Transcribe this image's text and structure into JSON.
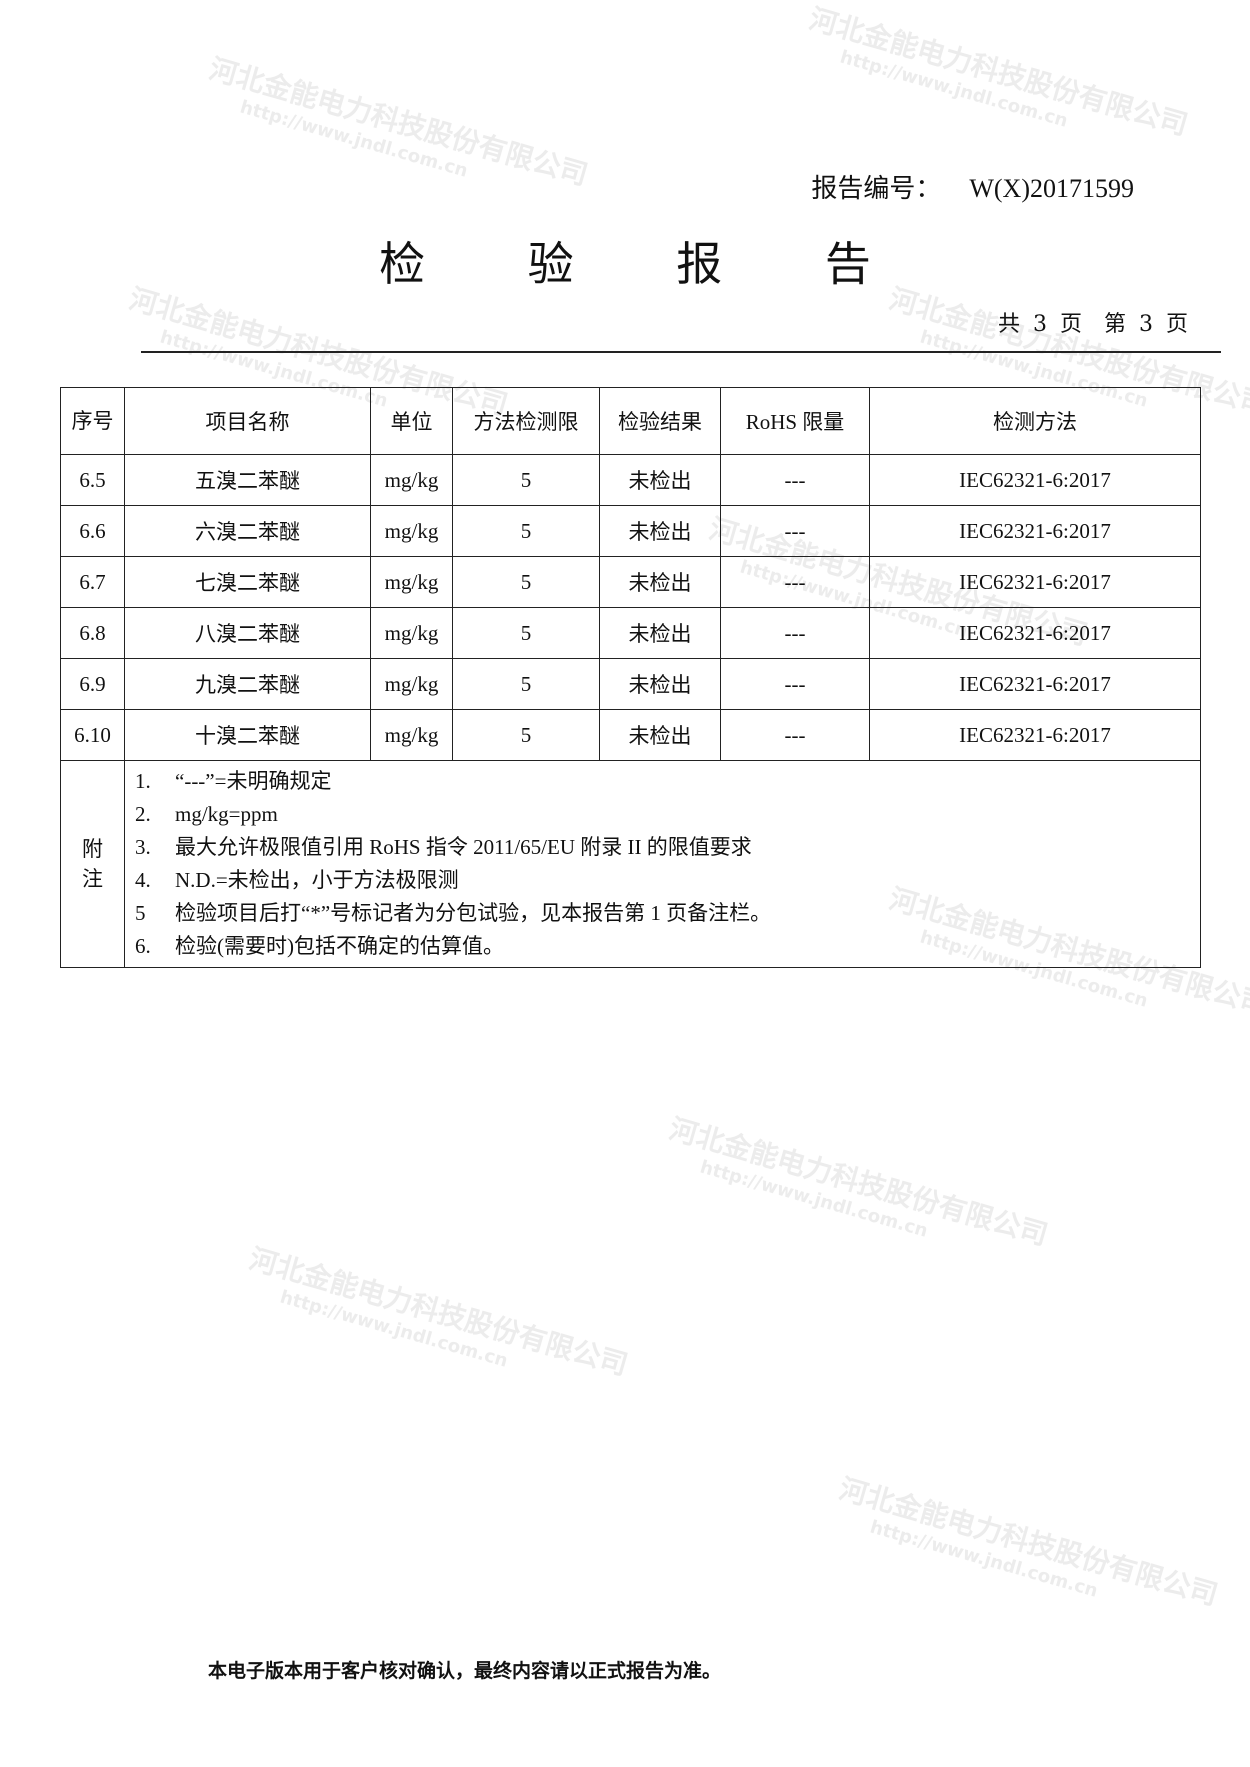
{
  "header": {
    "report_no_label": "报告编号：",
    "report_no": "W(X)20171599",
    "title": "检 验 报 告",
    "pages": "共 3 页　第 3 页"
  },
  "watermark": {
    "text": "河北金能电力科技股份有限公司",
    "url": "http://www.jndl.com.cn"
  },
  "table": {
    "headers": [
      "序号",
      "项目名称",
      "单位",
      "方法检测限",
      "检验结果",
      "RoHS 限量",
      "检测方法"
    ],
    "rows": [
      [
        "6.5",
        "五溴二苯醚",
        "mg/kg",
        "5",
        "未检出",
        "---",
        "IEC62321-6:2017"
      ],
      [
        "6.6",
        "六溴二苯醚",
        "mg/kg",
        "5",
        "未检出",
        "---",
        "IEC62321-6:2017"
      ],
      [
        "6.7",
        "七溴二苯醚",
        "mg/kg",
        "5",
        "未检出",
        "---",
        "IEC62321-6:2017"
      ],
      [
        "6.8",
        "八溴二苯醚",
        "mg/kg",
        "5",
        "未检出",
        "---",
        "IEC62321-6:2017"
      ],
      [
        "6.9",
        "九溴二苯醚",
        "mg/kg",
        "5",
        "未检出",
        "---",
        "IEC62321-6:2017"
      ],
      [
        "6.10",
        "十溴二苯醚",
        "mg/kg",
        "5",
        "未检出",
        "---",
        "IEC62321-6:2017"
      ]
    ],
    "notes_label": "附注",
    "notes": [
      {
        "n": "1.",
        "t": "“---”=未明确规定"
      },
      {
        "n": "2.",
        "t": "mg/kg=ppm"
      },
      {
        "n": "3.",
        "t": "最大允许极限值引用 RoHS 指令 2011/65/EU 附录 II 的限值要求"
      },
      {
        "n": "4.",
        "t": "N.D.=未检出，小于方法极限测"
      },
      {
        "n": "5",
        "t": "检验项目后打“*”号标记者为分包试验，见本报告第 1 页备注栏。"
      },
      {
        "n": "6.",
        "t": "检验(需要时)包括不确定的估算值。"
      }
    ]
  },
  "footer": "本电子版本用于客户核对确认，最终内容请以正式报告为准。"
}
